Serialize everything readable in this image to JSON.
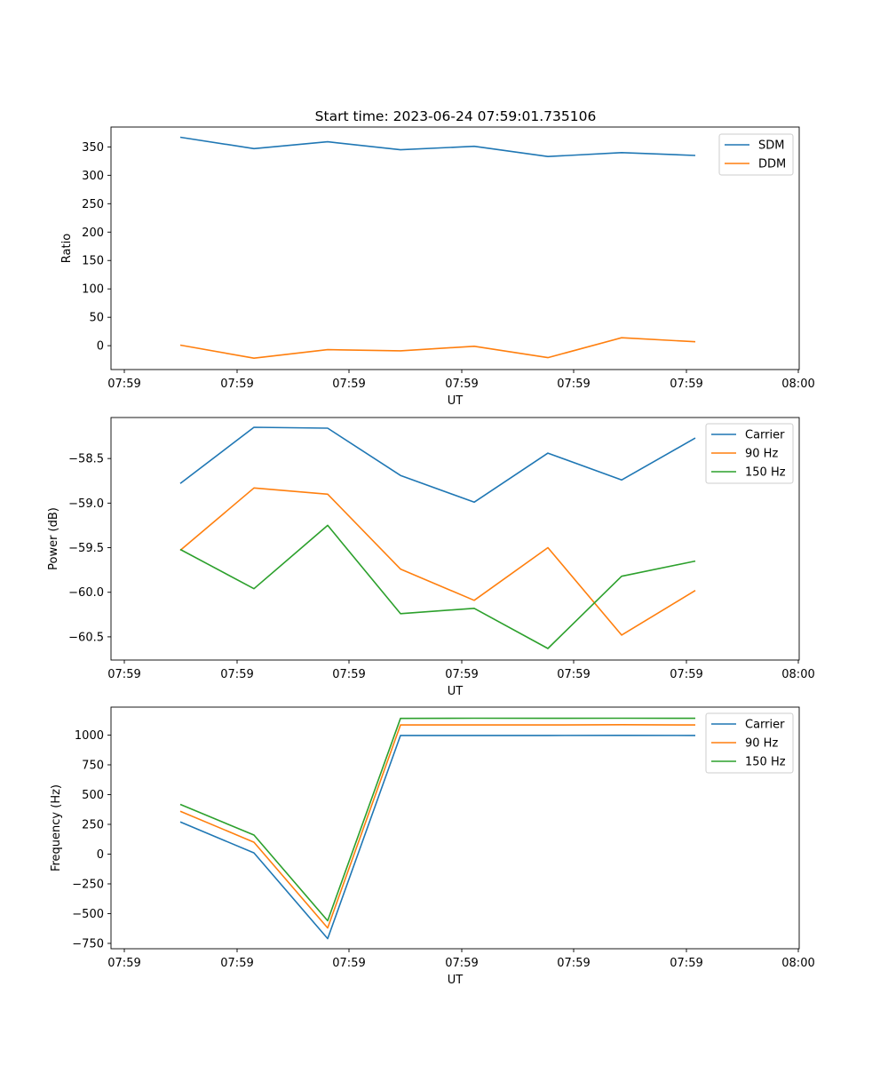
{
  "figure": {
    "title": "Start time: 2023-06-24 07:59:01.735106"
  },
  "chart_data": [
    {
      "type": "line",
      "title": "Start time: 2023-06-24 07:59:01.735106",
      "xlabel": "UT",
      "ylabel": "Ratio",
      "x": [
        "07:59:01.735",
        "07:59:02.5",
        "07:59:03.25",
        "07:59:04.0",
        "07:59:04.75",
        "07:59:05.5",
        "07:59:06.25",
        "07:59:07.0"
      ],
      "xticks": [
        "07:59",
        "07:59",
        "07:59",
        "07:59",
        "07:59",
        "07:59",
        "08:00"
      ],
      "yticks": [
        0,
        50,
        100,
        150,
        200,
        250,
        300,
        350
      ],
      "ylim": [
        -42,
        385
      ],
      "legend_position": "top-right",
      "series": [
        {
          "name": "SDM",
          "color": "#1f77b4",
          "values": [
            367,
            347,
            359,
            345,
            351,
            333,
            340,
            335
          ]
        },
        {
          "name": "DDM",
          "color": "#ff7f0e",
          "values": [
            1,
            -22,
            -7,
            -9,
            -1,
            -21,
            14,
            7
          ]
        }
      ]
    },
    {
      "type": "line",
      "xlabel": "UT",
      "ylabel": "Power (dB)",
      "x": [
        "07:59:01.735",
        "07:59:02.5",
        "07:59:03.25",
        "07:59:04.0",
        "07:59:04.75",
        "07:59:05.5",
        "07:59:06.25",
        "07:59:07.0"
      ],
      "xticks": [
        "07:59",
        "07:59",
        "07:59",
        "07:59",
        "07:59",
        "07:59",
        "08:00"
      ],
      "yticks": [
        -58.5,
        -59.0,
        -59.5,
        -60.0,
        -60.5
      ],
      "ylim": [
        -60.76,
        -58.04
      ],
      "legend_position": "top-right",
      "series": [
        {
          "name": "Carrier",
          "color": "#1f77b4",
          "values": [
            -58.78,
            -58.15,
            -58.16,
            -58.69,
            -58.99,
            -58.44,
            -58.74,
            -58.27
          ]
        },
        {
          "name": "90 Hz",
          "color": "#ff7f0e",
          "values": [
            -59.53,
            -58.83,
            -58.9,
            -59.74,
            -60.09,
            -59.5,
            -60.48,
            -59.98
          ]
        },
        {
          "name": "150 Hz",
          "color": "#2ca02c",
          "values": [
            -59.52,
            -59.96,
            -59.25,
            -60.24,
            -60.18,
            -60.63,
            -59.82,
            -59.65
          ]
        }
      ]
    },
    {
      "type": "line",
      "xlabel": "UT",
      "ylabel": "Frequency (Hz)",
      "x": [
        "07:59:01.735",
        "07:59:02.5",
        "07:59:03.25",
        "07:59:04.0",
        "07:59:04.75",
        "07:59:05.5",
        "07:59:06.25",
        "07:59:07.0"
      ],
      "xticks": [
        "07:59",
        "07:59",
        "07:59",
        "07:59",
        "07:59",
        "07:59",
        "08:00"
      ],
      "yticks": [
        1000,
        750,
        500,
        250,
        0,
        -250,
        -500,
        -750
      ],
      "ylim": [
        -795,
        1235
      ],
      "legend_position": "top-right",
      "series": [
        {
          "name": "Carrier",
          "color": "#1f77b4",
          "values": [
            270,
            10,
            -710,
            997,
            997,
            997,
            998,
            997
          ]
        },
        {
          "name": "90 Hz",
          "color": "#ff7f0e",
          "values": [
            360,
            100,
            -620,
            1085,
            1085,
            1085,
            1087,
            1085
          ]
        },
        {
          "name": "150 Hz",
          "color": "#2ca02c",
          "values": [
            418,
            160,
            -560,
            1140,
            1142,
            1141,
            1142,
            1141
          ]
        }
      ]
    }
  ]
}
